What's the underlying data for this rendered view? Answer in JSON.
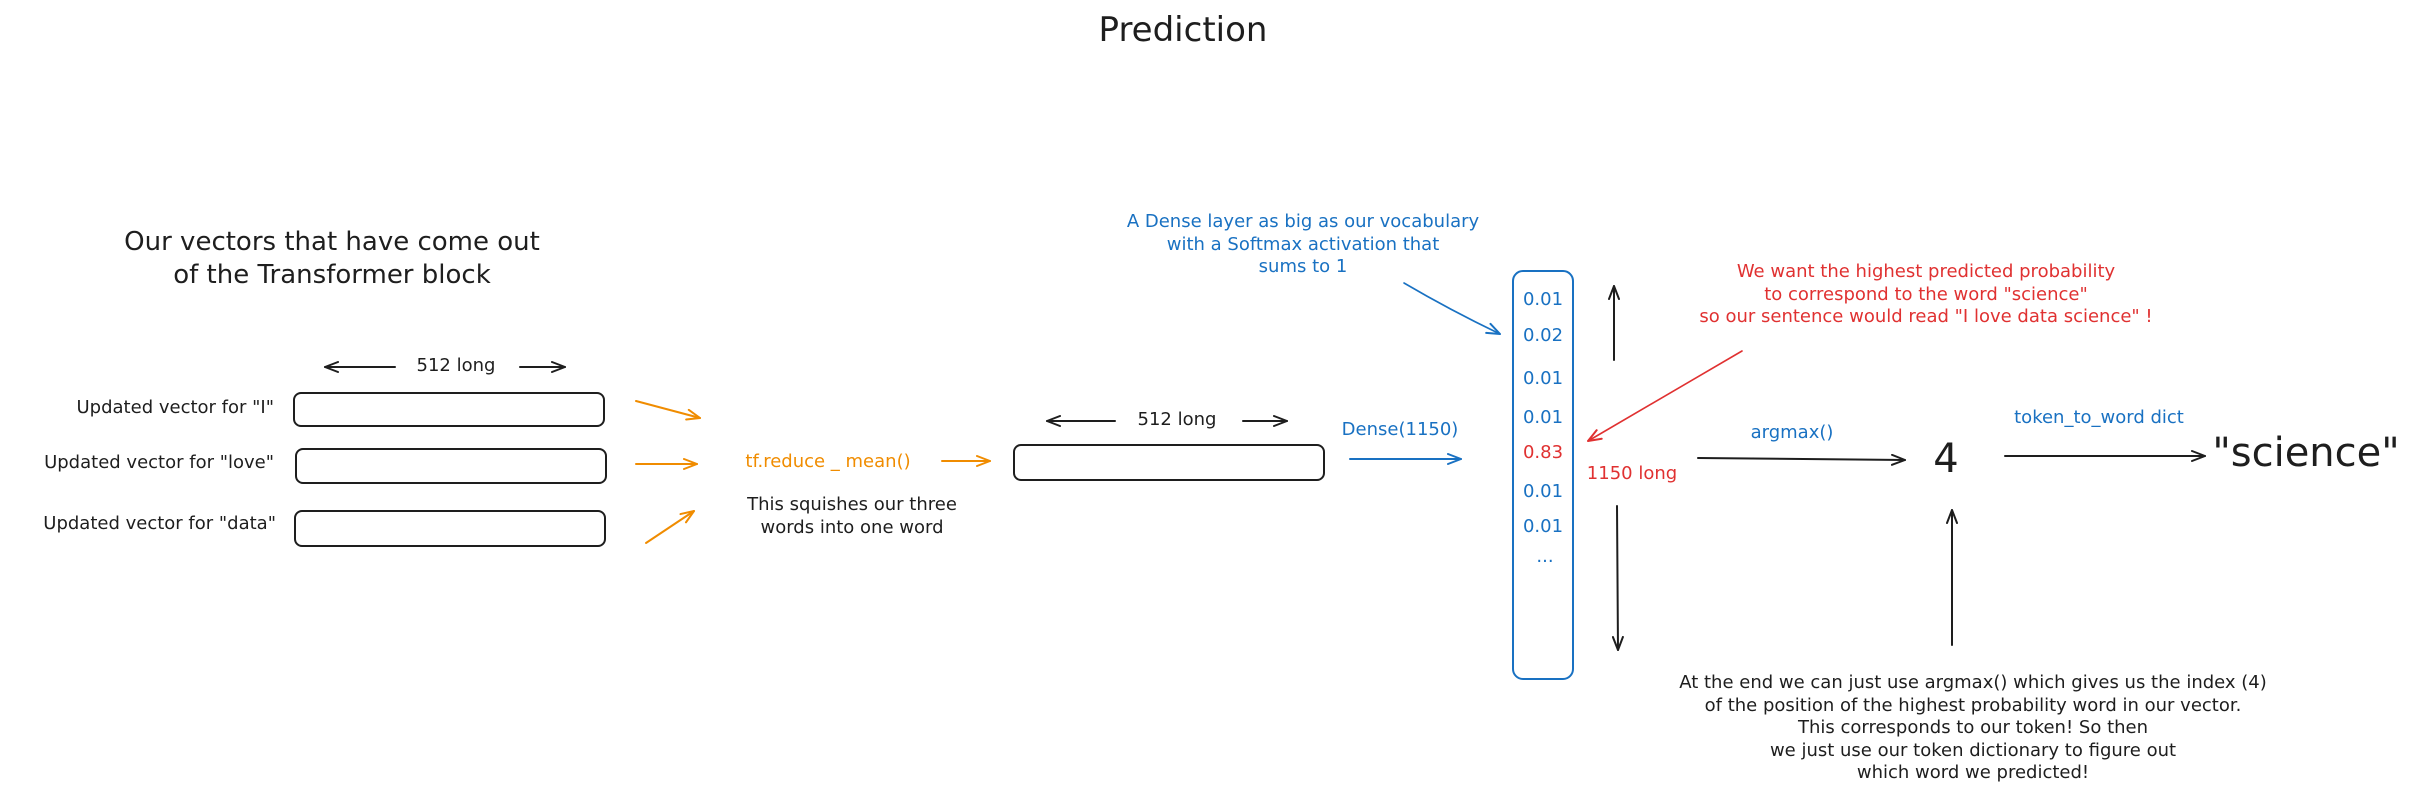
{
  "title": "Prediction",
  "heading": {
    "line1": "Our vectors that have come out",
    "line2": "of the Transformer block"
  },
  "vectors": {
    "length_label": "512 long",
    "items": [
      {
        "label": "Updated vector for \"I\""
      },
      {
        "label": "Updated vector for \"love\""
      },
      {
        "label": "Updated vector for \"data\""
      }
    ]
  },
  "reduce": {
    "function_label": "tf.reduce _ mean()",
    "caption_line1": "This squishes our three",
    "caption_line2": "words into one word"
  },
  "mean_vector": {
    "length_label": "512 long"
  },
  "dense": {
    "label": "Dense(1150)",
    "note_line1": "A Dense layer as big as our vocabulary",
    "note_line2": "with a Softmax activation that",
    "note_line3": "sums to 1",
    "length_label": "1150 long"
  },
  "probabilities": {
    "values": [
      "0.01",
      "0.02",
      "0.01",
      "0.01",
      "0.83",
      "0.01",
      "0.01",
      "..."
    ],
    "highlight_index": 4
  },
  "target_note": {
    "line1": "We want the highest predicted probability",
    "line2": "to correspond to the word \"science\"",
    "line3": "so our sentence would read \"I love data science\" !"
  },
  "argmax": {
    "label": "argmax()",
    "result": "4"
  },
  "lookup": {
    "label": "token_to_word dict",
    "result": "\"science\""
  },
  "explanation": {
    "line1": "At the end we can just use argmax() which gives us the index (4)",
    "line2": "of the position of the highest probability word in our vector.",
    "line3": "This corresponds to our token! So then",
    "line4": "we just use our token dictionary to figure out",
    "line5": "which word we predicted!"
  },
  "colors": {
    "ink": "#1e1e1e",
    "orange": "#f08c00",
    "blue": "#1971c2",
    "red": "#e03131"
  }
}
